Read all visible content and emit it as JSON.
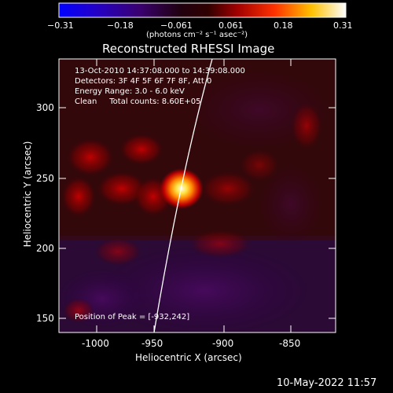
{
  "colorbar": {
    "tick_labels": [
      "−0.31",
      "−0.18",
      "−0.061",
      "0.061",
      "0.18",
      "0.31"
    ],
    "unit_label": "(photons cm⁻² s⁻¹ asec⁻²)",
    "colormap": [
      "#0000ff",
      "#3a00b0",
      "#3a0060",
      "#1a0000",
      "#800000",
      "#e00000",
      "#ff8000",
      "#ffff40",
      "#ffffff"
    ]
  },
  "title": "Reconstructed RHESSI Image",
  "info": {
    "time_range": "13-Oct-2010 14:37:08.000 to 14:39:08.000",
    "detectors": "Detectors: 3F 4F 5F 6F 7F 8F, Att 0",
    "energy": "Energy Range: 3.0 - 6.0 keV",
    "method_counts": "Clean     Total counts: 8.60E+05",
    "peak": "Position of Peak = [-932,242]"
  },
  "axes": {
    "xlabel": "Heliocentric X (arcsec)",
    "ylabel": "Heliocentric Y (arcsec)",
    "xticks": [
      "-1000",
      "-950",
      "-900",
      "-850"
    ],
    "yticks": [
      "150",
      "200",
      "250",
      "300"
    ],
    "xlim": [
      -1018,
      -830
    ],
    "ylim": [
      138,
      330
    ]
  },
  "footer": {
    "date": "10-May-2022 11:57"
  }
}
